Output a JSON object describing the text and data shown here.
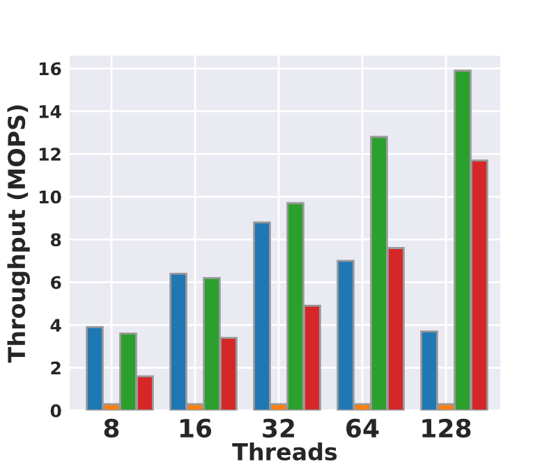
{
  "chart_data": {
    "type": "bar",
    "xlabel": "Threads",
    "ylabel": "Throughput (MOPS)",
    "categories": [
      "8",
      "16",
      "32",
      "64",
      "128"
    ],
    "series": [
      {
        "color": "#1f77b4",
        "values": [
          3.9,
          6.4,
          8.8,
          7.0,
          3.7
        ]
      },
      {
        "color": "#ff7f0e",
        "values": [
          0.3,
          0.3,
          0.3,
          0.3,
          0.3
        ]
      },
      {
        "color": "#2ca02c",
        "values": [
          3.6,
          6.2,
          9.7,
          12.8,
          15.9
        ]
      },
      {
        "color": "#d62728",
        "values": [
          1.6,
          3.4,
          4.9,
          7.6,
          11.7
        ]
      }
    ],
    "ylim": [
      0,
      16.6
    ],
    "yticks": [
      0,
      2,
      4,
      6,
      8,
      10,
      12,
      14,
      16
    ],
    "grid": true,
    "legend": false
  }
}
